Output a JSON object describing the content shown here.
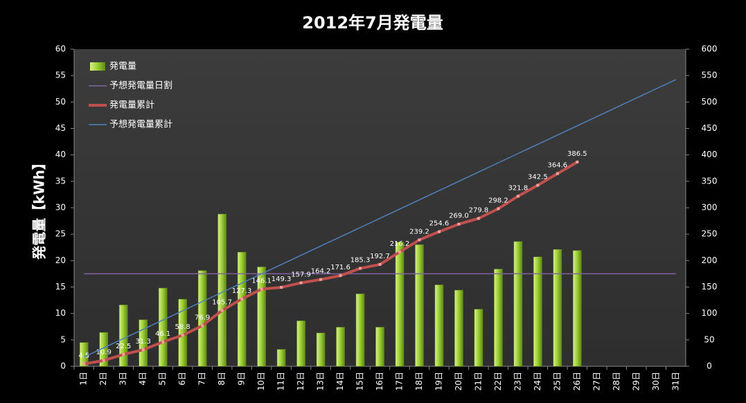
{
  "chart_data": {
    "type": "bar",
    "title": "2012年7月発電量",
    "ylabel": "発電量【kWh】",
    "categories": [
      "1日",
      "2日",
      "3日",
      "4日",
      "5日",
      "6日",
      "7日",
      "8日",
      "9日",
      "10日",
      "11日",
      "12日",
      "13日",
      "14日",
      "15日",
      "16日",
      "17日",
      "18日",
      "19日",
      "20日",
      "21日",
      "22日",
      "23日",
      "24日",
      "25日",
      "26日",
      "27日",
      "28日",
      "29日",
      "30日",
      "31日"
    ],
    "ylim": [
      0,
      60
    ],
    "yticks": [
      0,
      5,
      10,
      15,
      20,
      25,
      30,
      35,
      40,
      45,
      50,
      55,
      60
    ],
    "y2lim": [
      0,
      600
    ],
    "y2ticks": [
      0,
      50,
      100,
      150,
      200,
      250,
      300,
      350,
      400,
      450,
      500,
      550,
      600
    ],
    "grid": false,
    "legend": "upper left",
    "series": [
      {
        "name": "発電量",
        "type": "bar",
        "color": "#9acd32",
        "values": [
          4.5,
          6.4,
          11.6,
          8.8,
          14.8,
          12.7,
          18.1,
          28.8,
          21.6,
          18.8,
          3.2,
          8.6,
          6.3,
          7.4,
          13.7,
          7.4,
          23.5,
          23.0,
          15.4,
          14.4,
          10.8,
          18.4,
          23.6,
          20.7,
          22.1,
          21.9,
          null,
          null,
          null,
          null,
          null
        ]
      },
      {
        "name": "予想発電量日割",
        "type": "line",
        "color": "#8064a2",
        "values": [
          17.5,
          17.5,
          17.5,
          17.5,
          17.5,
          17.5,
          17.5,
          17.5,
          17.5,
          17.5,
          17.5,
          17.5,
          17.5,
          17.5,
          17.5,
          17.5,
          17.5,
          17.5,
          17.5,
          17.5,
          17.5,
          17.5,
          17.5,
          17.5,
          17.5,
          17.5,
          17.5,
          17.5,
          17.5,
          17.5,
          17.5
        ]
      },
      {
        "name": "発電量累計",
        "type": "line",
        "axis": "y2",
        "color": "#c0504d",
        "values": [
          4.5,
          10.9,
          22.5,
          31.3,
          46.1,
          58.8,
          76.9,
          105.7,
          127.3,
          146.1,
          149.3,
          157.9,
          164.2,
          171.6,
          185.3,
          192.7,
          216.2,
          239.2,
          254.6,
          269.0,
          279.8,
          298.2,
          321.8,
          342.5,
          364.6,
          386.5,
          null,
          null,
          null,
          null,
          null
        ],
        "value_labels": [
          "4.5",
          "10.9",
          "22.5",
          "31.3",
          "46.1",
          "58.8",
          "76.9",
          "105.7",
          "127.3",
          "146.1",
          "149.3",
          "157.9",
          "164.2",
          "171.6",
          "185.3",
          "192.7",
          "216.2",
          "239.2",
          "254.6",
          "269.0",
          "279.8",
          "298.2",
          "321.8",
          "342.5",
          "364.6",
          "386.5",
          null,
          null,
          null,
          null,
          null
        ]
      },
      {
        "name": "予想発電量累計",
        "type": "line",
        "axis": "y2",
        "color": "#4f81bd",
        "values": [
          17.5,
          35,
          52.5,
          70,
          87.5,
          105,
          122.5,
          140,
          157.5,
          175,
          192.5,
          210,
          227.5,
          245,
          262.5,
          280,
          297.5,
          315,
          332.5,
          350,
          367.5,
          385,
          402.5,
          420,
          437.5,
          455,
          472.5,
          490,
          507.5,
          525,
          542.5
        ]
      }
    ]
  }
}
